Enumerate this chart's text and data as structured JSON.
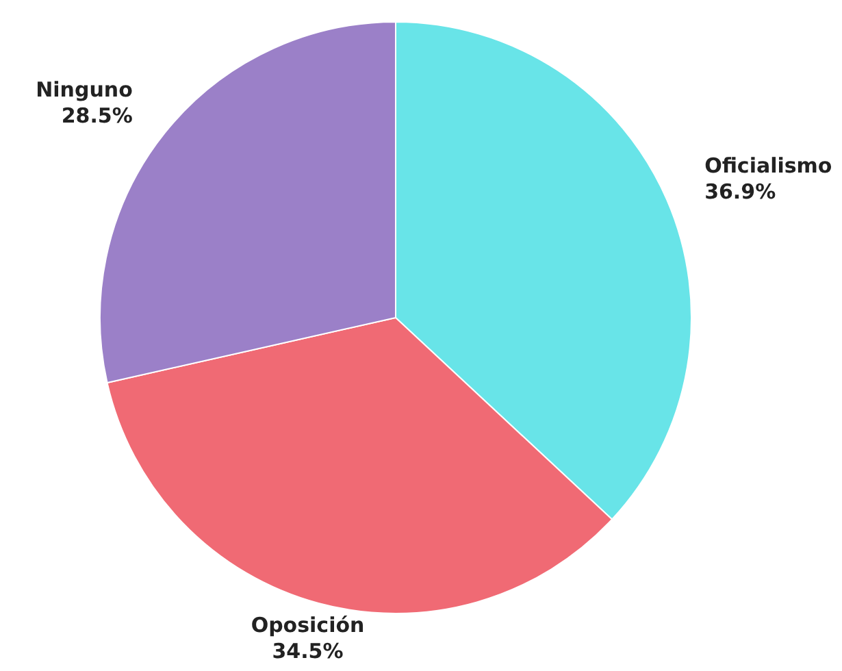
{
  "chart_data": {
    "type": "pie",
    "categories": [
      "Oficialismo",
      "Oposición",
      "Ninguno"
    ],
    "values": [
      36.9,
      34.5,
      28.5
    ],
    "colors": [
      "#68e4e8",
      "#f06a74",
      "#9b80c8"
    ],
    "value_labels": [
      "36.9%",
      "34.5%",
      "28.5%"
    ],
    "legend": false
  }
}
